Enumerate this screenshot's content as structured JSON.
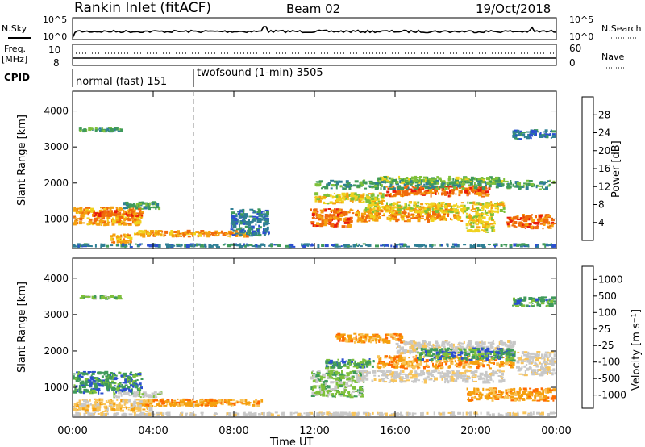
{
  "header": {
    "station": "Rankin Inlet (fitACF)",
    "beam": "Beam 02",
    "date": "19/Oct/2018"
  },
  "panels": {
    "nsky": {
      "label": "N.Sky",
      "ticks_left": [
        "10^5",
        "10^0"
      ],
      "right_label": "N.Search",
      "ticks_right": [
        "10^5",
        "10^0"
      ]
    },
    "freq": {
      "label_line1": "Freq.",
      "label_line2": "[MHz]",
      "ticks_left": [
        "10",
        "8"
      ],
      "right_label": "Nave",
      "ticks_right": [
        "60",
        "0"
      ]
    },
    "cpid": {
      "label": "CPID",
      "modes": [
        {
          "text": "normal (fast) 151",
          "start_hour": 0,
          "end_hour": 6
        },
        {
          "text": "twofsound (1-min) 3505",
          "start_hour": 6,
          "end_hour": 24
        }
      ]
    }
  },
  "colors": {
    "power_scale": [
      "#1414f5",
      "#2b4fd0",
      "#2f7f95",
      "#3f9a5a",
      "#7ec03a",
      "#f0d21e",
      "#f5a00f",
      "#f06a0c",
      "#e81c0c"
    ],
    "velocity_scale": [
      "#ff0000",
      "#ff6a00",
      "#f5a00f",
      "#f8c45a",
      "#c8c8c8",
      "#c8c8c8",
      "#7ec03a",
      "#3f9a5a",
      "#2b4fd0",
      "#1414c8"
    ]
  },
  "chart_data": [
    {
      "type": "heatmap",
      "name": "power",
      "ylabel": "Slant Range [km]",
      "xlabel": "Time UT",
      "xlim": [
        0,
        24
      ],
      "ylim": [
        180,
        4550
      ],
      "x_ticks": [
        "00:00",
        "04:00",
        "08:00",
        "12:00",
        "16:00",
        "20:00",
        "00:00"
      ],
      "y_ticks": [
        1000,
        2000,
        3000,
        4000
      ],
      "colorbar": {
        "label": "Power [dB]",
        "ticks": [
          4,
          8,
          12,
          16,
          20,
          24,
          28
        ],
        "range": [
          0,
          32
        ]
      },
      "bands": [
        {
          "t0": 0.0,
          "t1": 3.5,
          "r0": 800,
          "r1": 1350,
          "value": 22
        },
        {
          "t0": 1.0,
          "t1": 3.6,
          "r0": 1050,
          "r1": 1250,
          "value": 28
        },
        {
          "t0": 2.5,
          "t1": 4.4,
          "r0": 1250,
          "r1": 1500,
          "value": 12
        },
        {
          "t0": 1.8,
          "t1": 3.0,
          "r0": 300,
          "r1": 600,
          "value": 24
        },
        {
          "t0": 3.0,
          "t1": 9.0,
          "r0": 480,
          "r1": 700,
          "value": 22
        },
        {
          "t0": 0.0,
          "t1": 24.0,
          "r0": 200,
          "r1": 330,
          "value": 6
        },
        {
          "t0": 11.8,
          "t1": 14.0,
          "r0": 750,
          "r1": 1300,
          "value": 28
        },
        {
          "t0": 12.0,
          "t1": 15.5,
          "r0": 1400,
          "r1": 1750,
          "value": 18
        },
        {
          "t0": 14.0,
          "t1": 19.5,
          "r0": 900,
          "r1": 1300,
          "value": 24
        },
        {
          "t0": 14.5,
          "t1": 21.5,
          "r0": 1150,
          "r1": 1500,
          "value": 18
        },
        {
          "t0": 15.5,
          "t1": 20.8,
          "r0": 1600,
          "r1": 1950,
          "value": 28
        },
        {
          "t0": 15.0,
          "t1": 21.5,
          "r0": 1950,
          "r1": 2200,
          "value": 16
        },
        {
          "t0": 21.5,
          "t1": 24.0,
          "r0": 700,
          "r1": 1150,
          "value": 28
        },
        {
          "t0": 19.5,
          "t1": 21.0,
          "r0": 600,
          "r1": 1200,
          "value": 20
        },
        {
          "t0": 21.8,
          "t1": 24.0,
          "r0": 3200,
          "r1": 3500,
          "value": 6
        },
        {
          "t0": 0.3,
          "t1": 2.5,
          "r0": 3400,
          "r1": 3550,
          "value": 12
        },
        {
          "t0": 12.0,
          "t1": 24.0,
          "r0": 1800,
          "r1": 2100,
          "value": 12
        },
        {
          "t0": 7.8,
          "t1": 9.8,
          "r0": 500,
          "r1": 1300,
          "value": 8
        }
      ]
    },
    {
      "type": "heatmap",
      "name": "velocity",
      "ylabel": "Slant Range [km]",
      "xlabel": "Time UT",
      "xlim": [
        0,
        24
      ],
      "ylim": [
        180,
        4550
      ],
      "x_ticks": [
        "00:00",
        "04:00",
        "08:00",
        "12:00",
        "16:00",
        "20:00",
        "00:00"
      ],
      "y_ticks": [
        1000,
        2000,
        3000,
        4000
      ],
      "colorbar": {
        "label": "Velocity [m s⁻¹]",
        "ticks": [
          "1000",
          "500",
          "100",
          "25",
          "-25",
          "-100",
          "-500",
          "-1000"
        ]
      },
      "bands": [
        {
          "t0": 0.0,
          "t1": 3.5,
          "r0": 800,
          "r1": 1450,
          "value": 7
        },
        {
          "t0": 0.0,
          "t1": 4.0,
          "r0": 300,
          "r1": 700,
          "value": 3
        },
        {
          "t0": 2.0,
          "t1": 4.5,
          "r0": 700,
          "r1": 900,
          "value": 5
        },
        {
          "t0": 3.5,
          "t1": 9.5,
          "r0": 450,
          "r1": 700,
          "value": 2
        },
        {
          "t0": 0.0,
          "t1": 24.0,
          "r0": 200,
          "r1": 330,
          "value": 4
        },
        {
          "t0": 11.8,
          "t1": 14.5,
          "r0": 700,
          "r1": 1500,
          "value": 6
        },
        {
          "t0": 12.5,
          "t1": 15.0,
          "r0": 1500,
          "r1": 1800,
          "value": 7
        },
        {
          "t0": 14.0,
          "t1": 21.5,
          "r0": 1100,
          "r1": 1500,
          "value": 4
        },
        {
          "t0": 15.0,
          "t1": 22.0,
          "r0": 1500,
          "r1": 1900,
          "value": 2
        },
        {
          "t0": 16.0,
          "t1": 22.0,
          "r0": 1900,
          "r1": 2300,
          "value": 4
        },
        {
          "t0": 13.0,
          "t1": 16.5,
          "r0": 2200,
          "r1": 2500,
          "value": 2
        },
        {
          "t0": 17.0,
          "t1": 22.0,
          "r0": 1700,
          "r1": 2100,
          "value": 7
        },
        {
          "t0": 19.5,
          "t1": 24.0,
          "r0": 600,
          "r1": 1000,
          "value": 2
        },
        {
          "t0": 21.8,
          "t1": 24.0,
          "r0": 3200,
          "r1": 3500,
          "value": 7
        },
        {
          "t0": 0.3,
          "t1": 2.5,
          "r0": 3400,
          "r1": 3550,
          "value": 6
        },
        {
          "t0": 22.0,
          "t1": 24.0,
          "r0": 1300,
          "r1": 2000,
          "value": 4
        }
      ]
    }
  ]
}
